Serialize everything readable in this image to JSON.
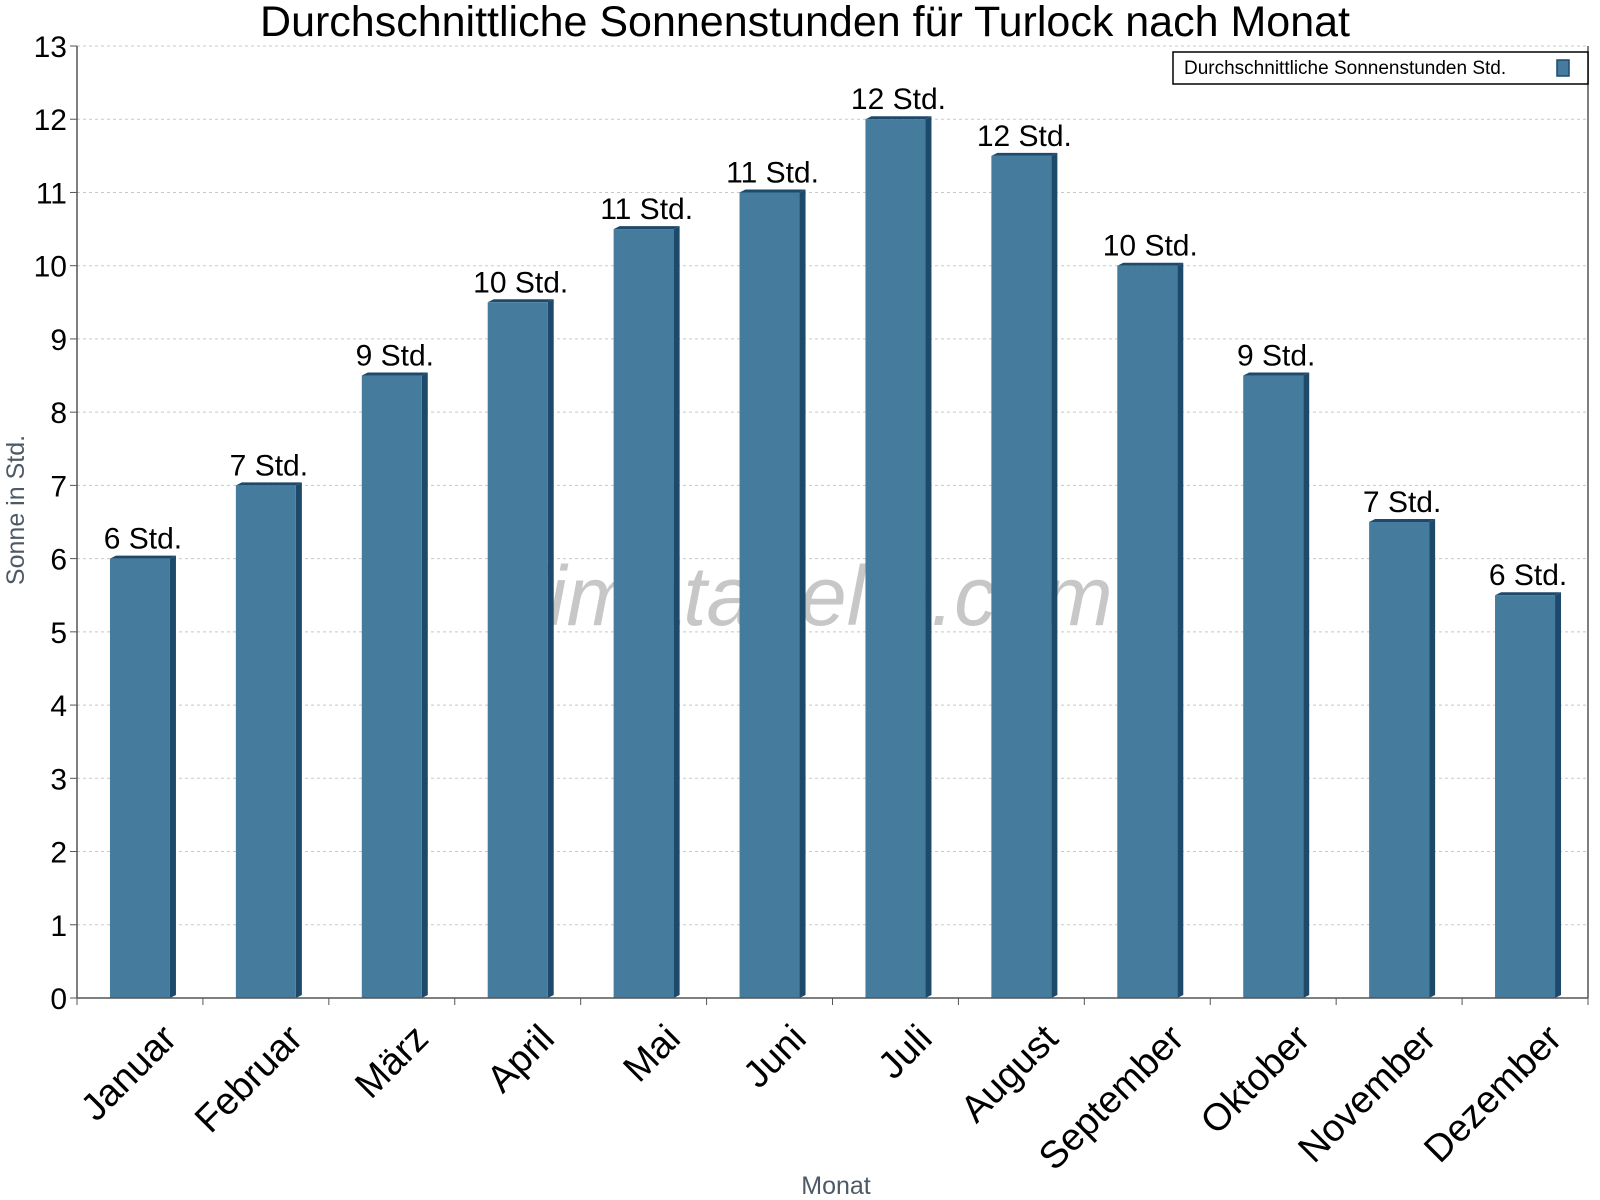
{
  "watermark": "klimatabelle.com",
  "colors": {
    "bar": "#457b9d",
    "bar_dark": "#1d4a6b",
    "grid": "#c8c8c8",
    "axis": "#555555"
  },
  "chart_data": {
    "type": "bar",
    "title": "Durchschnittliche Sonnenstunden für Turlock nach Monat",
    "xlabel": "Monat",
    "ylabel": "Sonne in Std.",
    "ylim": [
      0,
      13
    ],
    "yticks": [
      0,
      1,
      2,
      3,
      4,
      5,
      6,
      7,
      8,
      9,
      10,
      11,
      12,
      13
    ],
    "grid": true,
    "legend_position": "top-right",
    "categories": [
      "Januar",
      "Februar",
      "März",
      "April",
      "Mai",
      "Juni",
      "Juli",
      "August",
      "September",
      "Oktober",
      "November",
      "Dezember"
    ],
    "series": [
      {
        "name": "Durchschnittliche Sonnenstunden Std.",
        "values": [
          6.0,
          7.0,
          8.5,
          9.5,
          10.5,
          11.0,
          12.0,
          11.5,
          10.0,
          8.5,
          6.5,
          5.5
        ],
        "labels": [
          "6 Std.",
          "7 Std.",
          "9 Std.",
          "10 Std.",
          "11 Std.",
          "11 Std.",
          "12 Std.",
          "12 Std.",
          "10 Std.",
          "9 Std.",
          "7 Std.",
          "6 Std."
        ]
      }
    ]
  }
}
